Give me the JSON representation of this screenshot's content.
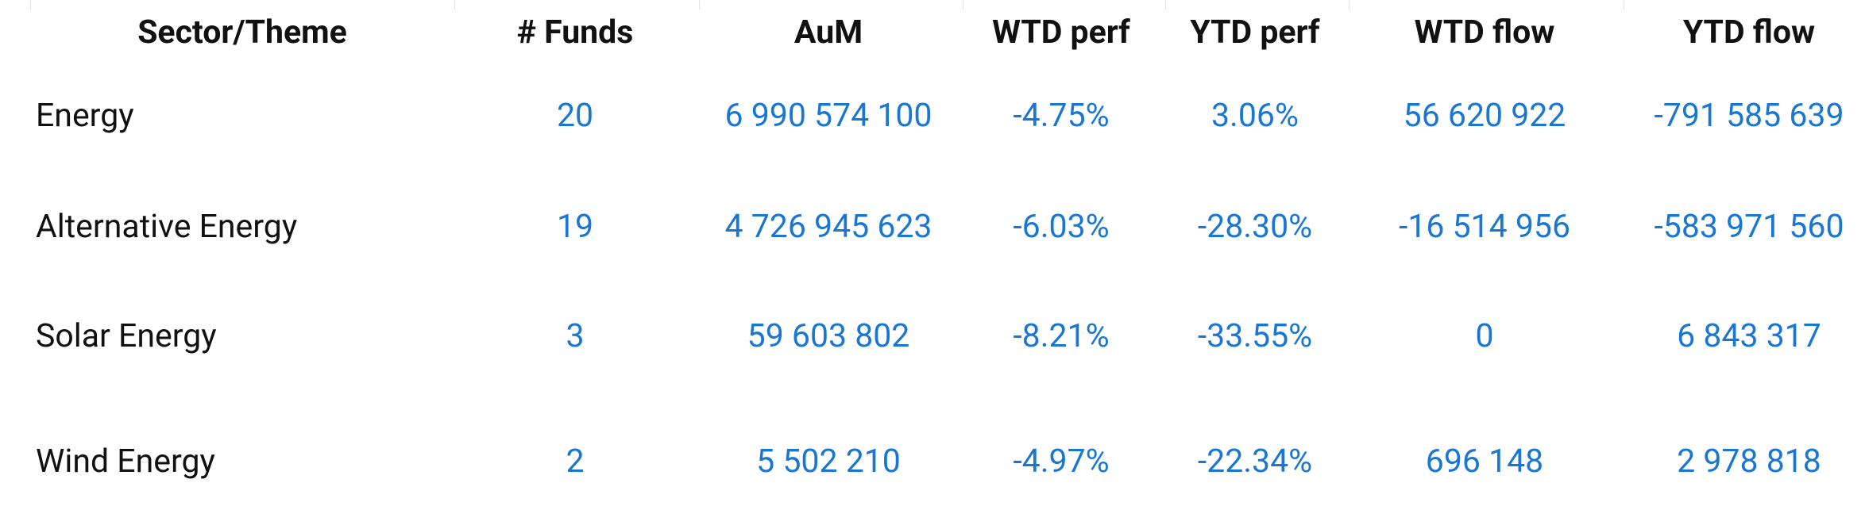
{
  "table": {
    "header": [
      "Sector/Theme",
      "# Funds",
      "AuM",
      "WTD perf",
      "YTD perf",
      "WTD flow",
      "YTD flow"
    ],
    "rows": [
      [
        "Energy",
        "20",
        "6 990 574 100",
        "-4.75%",
        "3.06%",
        "56 620 922",
        "-791 585 639"
      ],
      [
        "Alternative Energy",
        "19",
        "4 726 945 623",
        "-6.03%",
        "-28.30%",
        "-16 514 956",
        "-583 971 560"
      ],
      [
        "Solar Energy",
        "3",
        "59 603 802",
        "-8.21%",
        "-33.55%",
        "0",
        "6 843 317"
      ],
      [
        "Wind Energy",
        "2",
        "5 502 210",
        "-4.97%",
        "-22.34%",
        "696 148",
        "2 978 818"
      ]
    ]
  }
}
